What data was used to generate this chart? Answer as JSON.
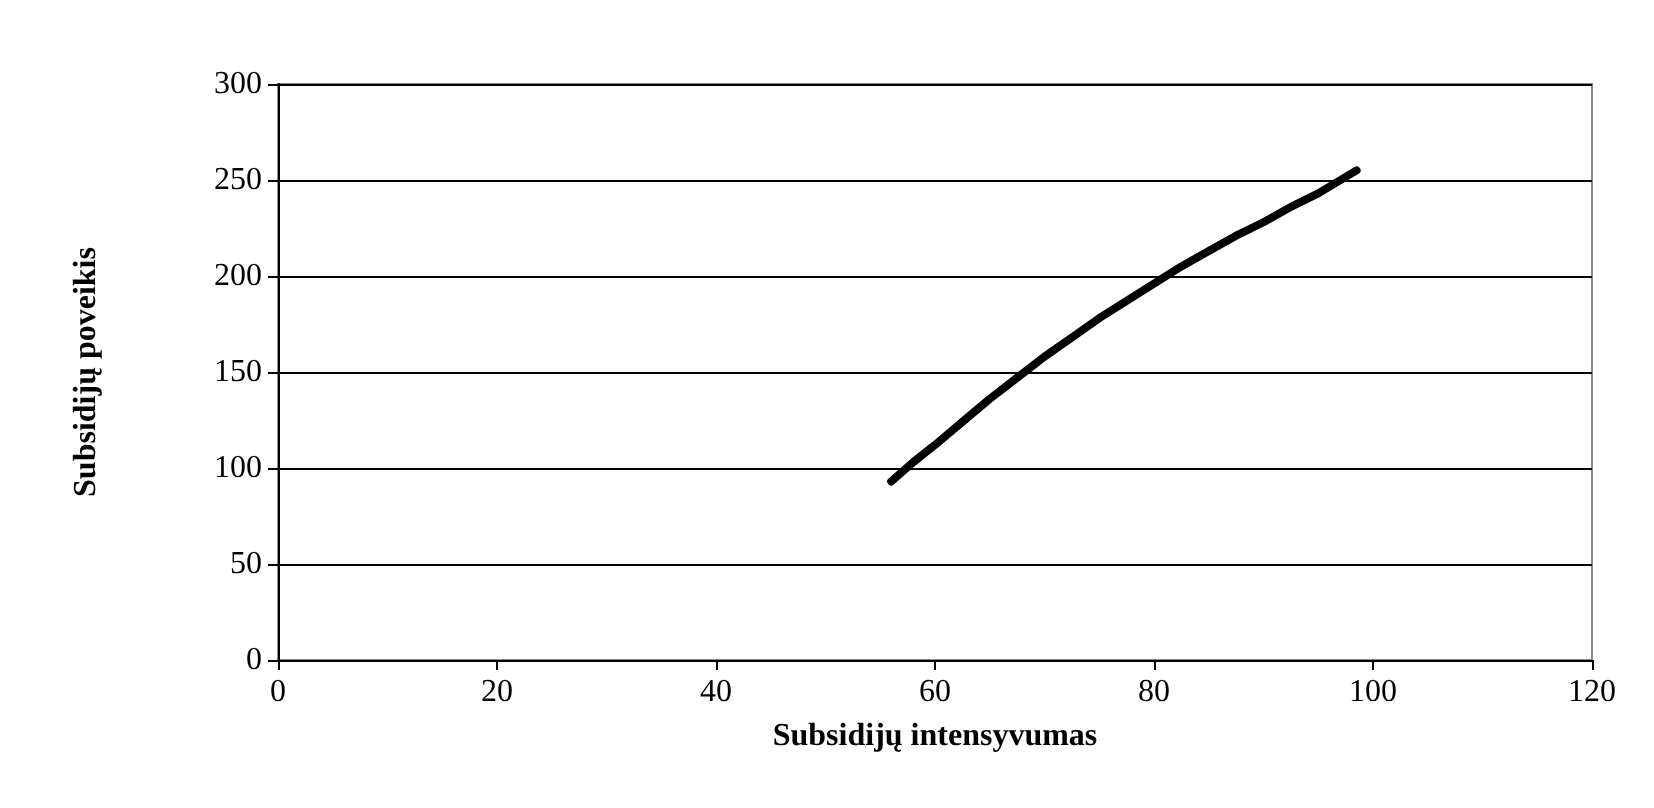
{
  "chart_data": {
    "type": "line",
    "xlabel": "Subsidijų intensyvumas",
    "ylabel": "Subsidijų poveikis",
    "x": [
      56,
      58,
      60,
      62.5,
      65,
      67.5,
      70,
      72.5,
      75,
      77.5,
      80,
      82.5,
      85,
      87.5,
      90,
      92.5,
      95,
      98.5
    ],
    "series": [
      {
        "color": "#000000",
        "values": [
          93,
          103,
          112,
          124,
          136,
          147,
          158,
          168,
          178,
          187,
          196,
          205,
          213,
          221,
          228,
          236,
          243,
          255
        ]
      }
    ],
    "xlim": [
      0,
      120
    ],
    "xticks": [
      0,
      20,
      40,
      60,
      80,
      100,
      120
    ],
    "ylim": [
      0,
      300
    ],
    "yticks": [
      0,
      50,
      100,
      150,
      200,
      250,
      300
    ],
    "grid": "y",
    "marker": "none",
    "line_style": "solid"
  }
}
